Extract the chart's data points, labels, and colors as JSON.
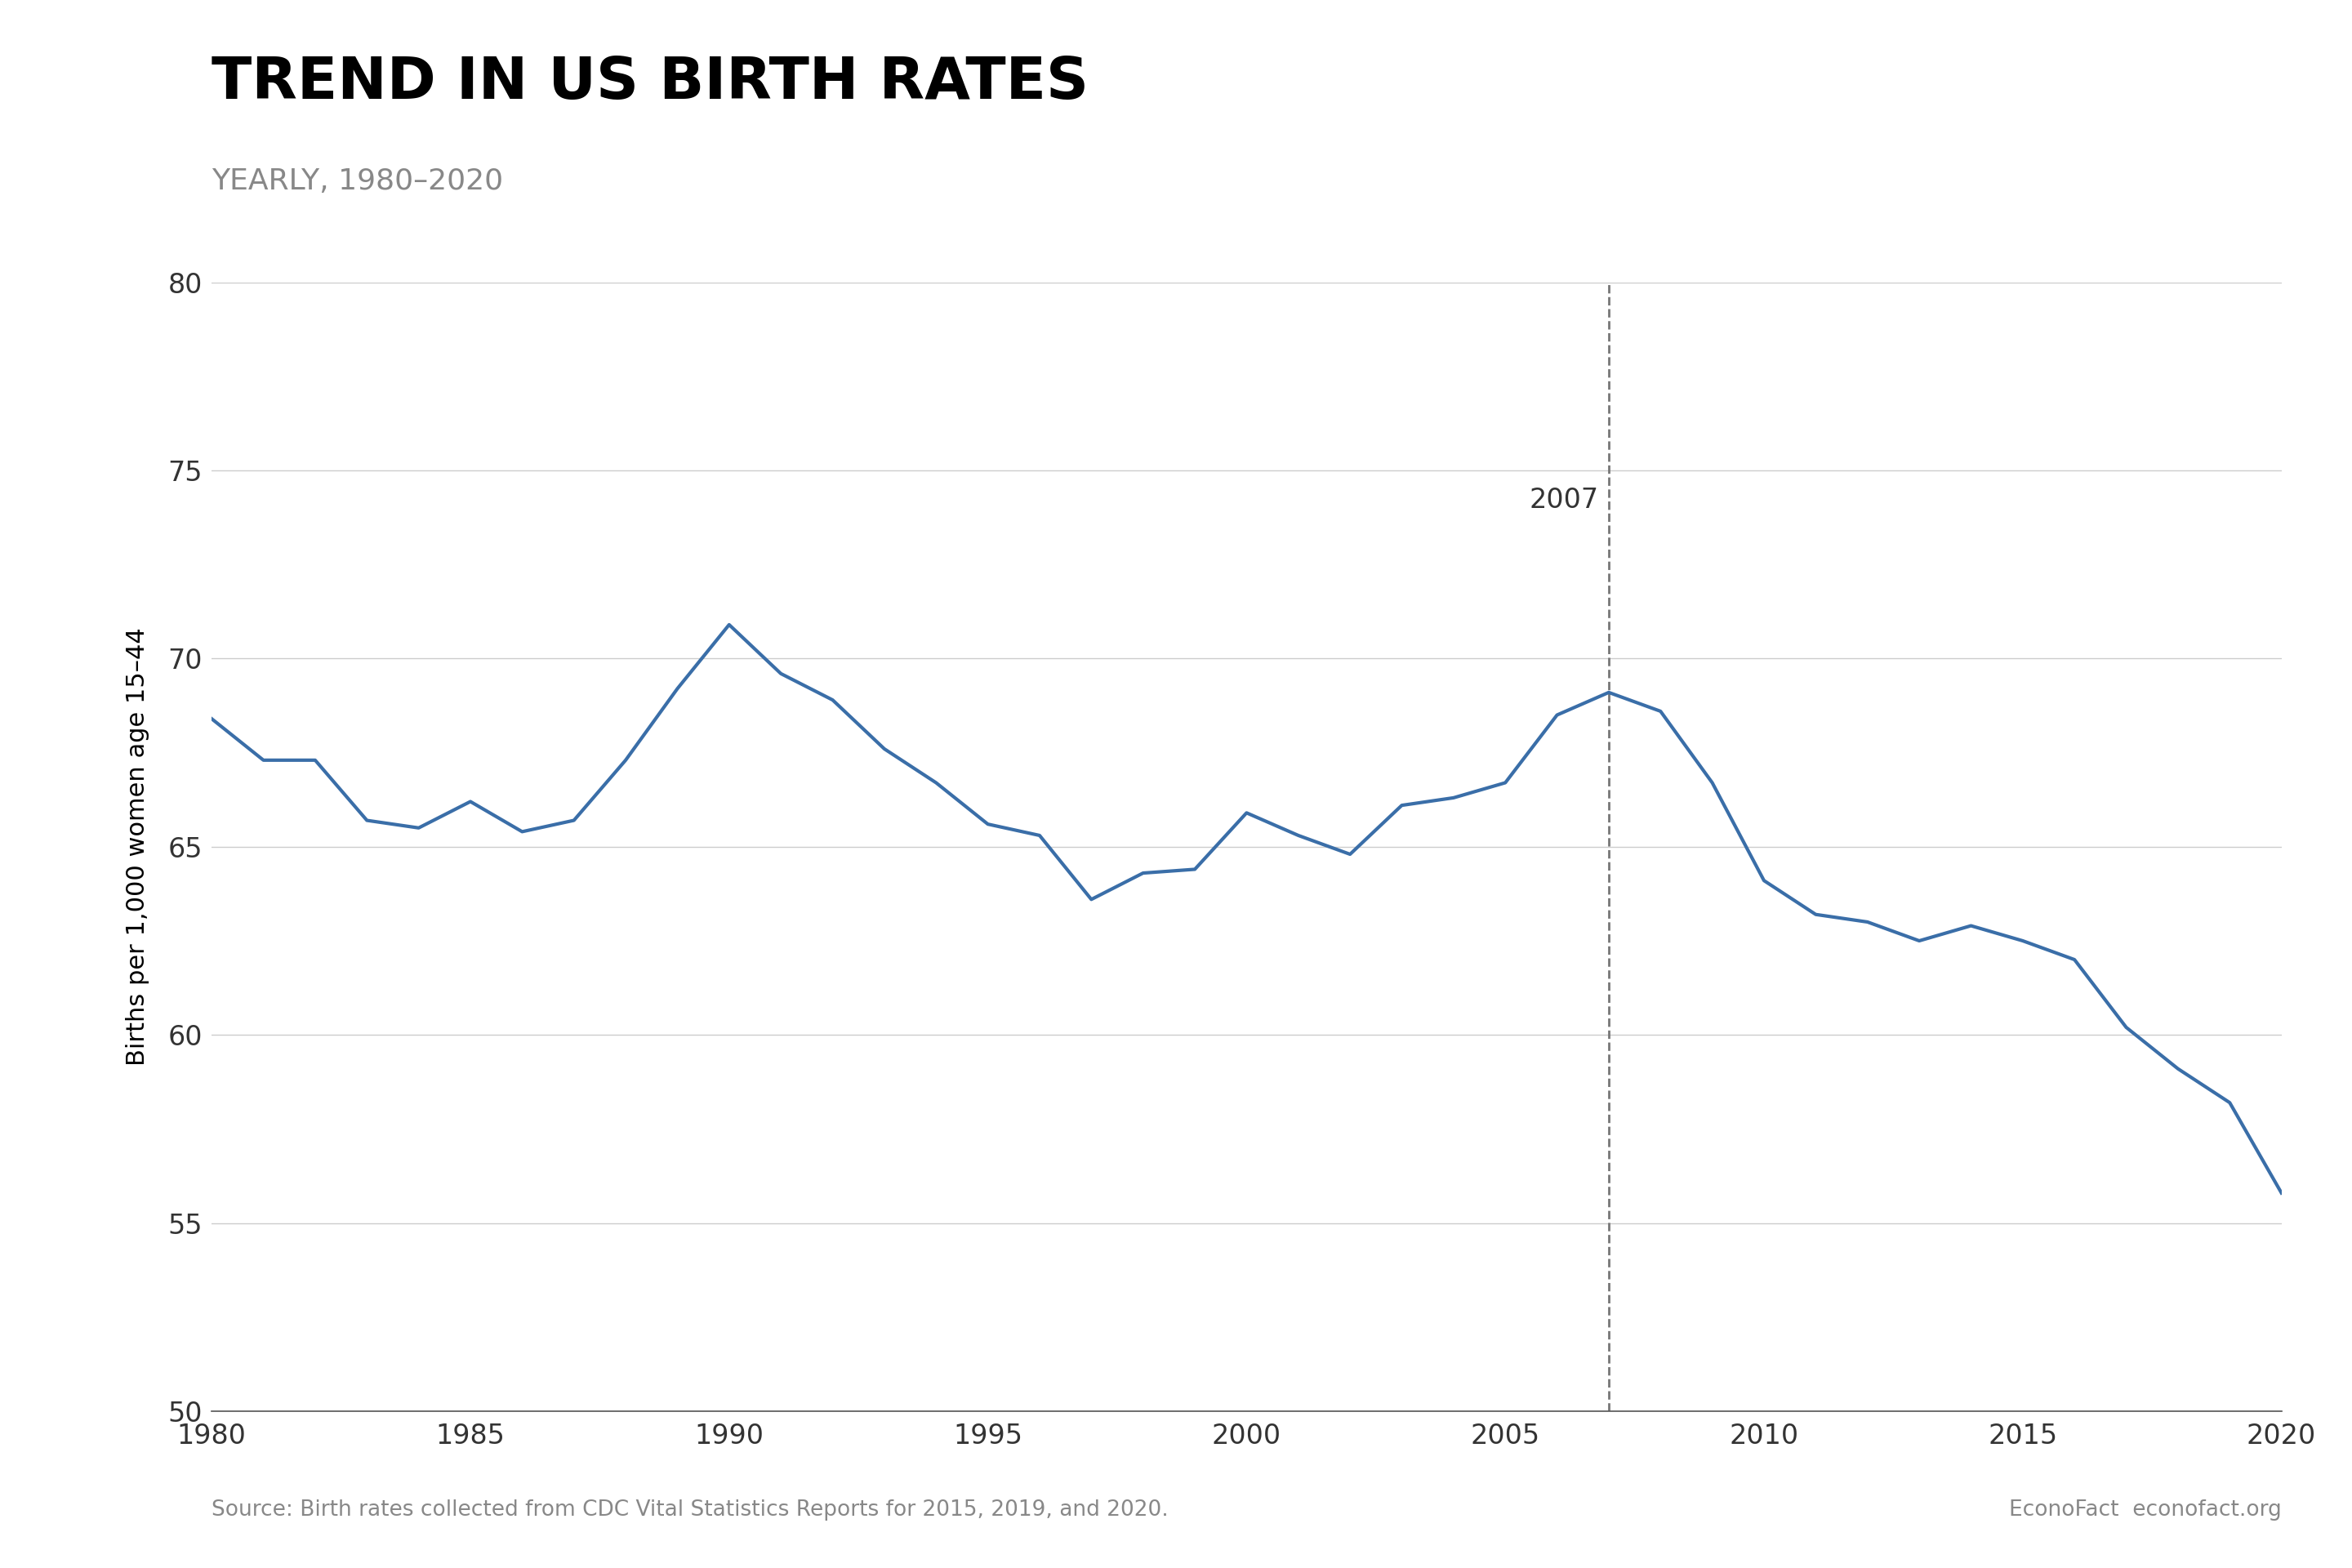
{
  "title": "TREND IN US BIRTH RATES",
  "subtitle": "YEARLY, 1980–2020",
  "ylabel": "Births per 1,000 women age 15–44",
  "source_left": "Source: Birth rates collected from CDC Vital Statistics Reports for 2015, 2019, and 2020.",
  "source_right": "EconoFact  econofact.org",
  "years": [
    1980,
    1981,
    1982,
    1983,
    1984,
    1985,
    1986,
    1987,
    1988,
    1989,
    1990,
    1991,
    1992,
    1993,
    1994,
    1995,
    1996,
    1997,
    1998,
    1999,
    2000,
    2001,
    2002,
    2003,
    2004,
    2005,
    2006,
    2007,
    2008,
    2009,
    2010,
    2011,
    2012,
    2013,
    2014,
    2015,
    2016,
    2017,
    2018,
    2019,
    2020
  ],
  "values": [
    68.4,
    67.3,
    67.3,
    65.7,
    65.5,
    66.2,
    65.4,
    65.7,
    67.3,
    69.2,
    70.9,
    69.6,
    68.9,
    67.6,
    66.7,
    65.6,
    65.3,
    63.6,
    64.3,
    64.4,
    65.9,
    65.3,
    64.8,
    66.1,
    66.3,
    66.7,
    68.5,
    69.1,
    68.6,
    66.7,
    64.1,
    63.2,
    63.0,
    62.5,
    62.9,
    62.5,
    62.0,
    60.2,
    59.1,
    58.2,
    55.8
  ],
  "line_color": "#3a6ea8",
  "line_width": 3.0,
  "vline_year": 2007,
  "vline_label": "2007",
  "ylim": [
    50,
    80
  ],
  "yticks": [
    50,
    55,
    60,
    65,
    70,
    75,
    80
  ],
  "xlim": [
    1980,
    2020
  ],
  "xticks": [
    1980,
    1985,
    1990,
    1995,
    2000,
    2005,
    2010,
    2015,
    2020
  ],
  "background_color": "#ffffff",
  "title_fontsize": 52,
  "subtitle_fontsize": 26,
  "ylabel_fontsize": 22,
  "tick_fontsize": 24,
  "source_fontsize": 19,
  "vline_label_fontsize": 24,
  "title_color": "#000000",
  "subtitle_color": "#888888",
  "ylabel_color": "#000000",
  "tick_color": "#333333",
  "source_color": "#888888",
  "vline_color": "#777777",
  "grid_color": "#cccccc"
}
